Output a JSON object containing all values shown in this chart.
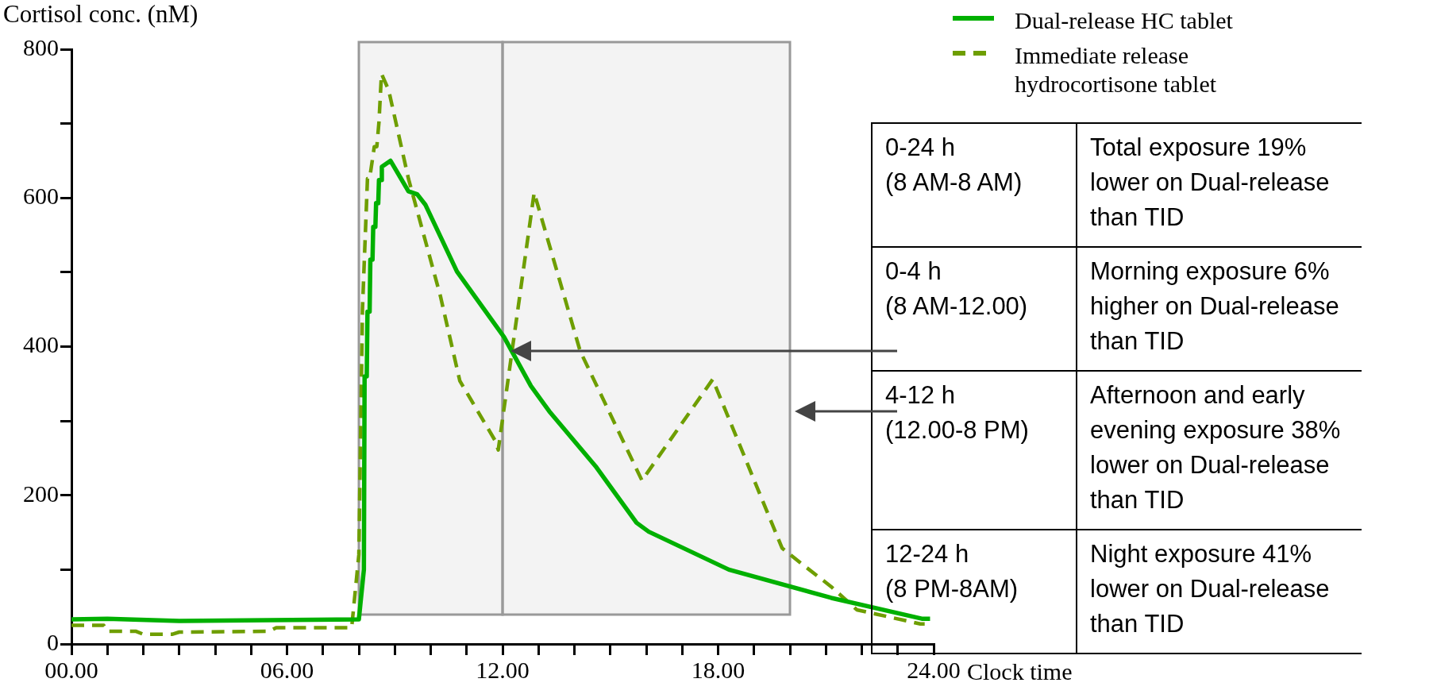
{
  "chart_data": {
    "type": "line",
    "ylabel": "Cortisol conc. (nM)",
    "xlabel": "Clock time",
    "xlim": [
      0,
      24
    ],
    "xticks": [
      {
        "value": 0,
        "label": "00.00"
      },
      {
        "value": 1,
        "label": null
      },
      {
        "value": 2,
        "label": null
      },
      {
        "value": 3,
        "label": null
      },
      {
        "value": 4,
        "label": null
      },
      {
        "value": 5,
        "label": null
      },
      {
        "value": 6,
        "label": "06.00"
      },
      {
        "value": 7,
        "label": null
      },
      {
        "value": 8,
        "label": null
      },
      {
        "value": 9,
        "label": null
      },
      {
        "value": 10,
        "label": null
      },
      {
        "value": 11,
        "label": null
      },
      {
        "value": 12,
        "label": "12.00"
      },
      {
        "value": 13,
        "label": null
      },
      {
        "value": 14,
        "label": null
      },
      {
        "value": 15,
        "label": null
      },
      {
        "value": 16,
        "label": null
      },
      {
        "value": 17,
        "label": null
      },
      {
        "value": 18,
        "label": "18.00"
      },
      {
        "value": 19,
        "label": null
      },
      {
        "value": 20,
        "label": null
      },
      {
        "value": 21,
        "label": null
      },
      {
        "value": 22,
        "label": null
      },
      {
        "value": 23,
        "label": null
      },
      {
        "value": 24,
        "label": "24.00"
      }
    ],
    "ylim": [
      0,
      800
    ],
    "yticks": [
      0,
      {
        "value": 100,
        "label": null
      },
      200,
      {
        "value": 300,
        "label": null
      },
      400,
      {
        "value": 500,
        "label": null
      },
      600,
      {
        "value": 700,
        "label": null
      },
      800
    ],
    "grid": false,
    "legend": "top right",
    "marker": "none",
    "series": [
      {
        "name": "Dual-release HC tablet",
        "color": "#00b000",
        "line_style": "solid",
        "x": [
          0,
          1,
          3,
          8,
          8.14,
          8.16,
          8.22,
          8.24,
          8.3,
          8.32,
          8.38,
          8.4,
          8.46,
          8.48,
          8.54,
          8.56,
          8.62,
          8.64,
          8.88,
          9.38,
          9.62,
          9.85,
          10.73,
          12.04,
          12.79,
          13.3,
          14.59,
          15.73,
          16.07,
          18.3,
          21.15,
          23.67,
          23.9
        ],
        "values": [
          33,
          34,
          31,
          33,
          100,
          360,
          360,
          447,
          447,
          517,
          517,
          561,
          561,
          593,
          593,
          624,
          624,
          642,
          650,
          609,
          605,
          591,
          501,
          413,
          347,
          313,
          239,
          163,
          151,
          100,
          62,
          34,
          34
        ]
      },
      {
        "name": "Immediate release hydrocortisone tablet",
        "color": "#6e9e00",
        "line_style": "dashed",
        "x": [
          0,
          0.9,
          1,
          1.8,
          2,
          2.8,
          3,
          5.5,
          5.7,
          7.8,
          8.0,
          8.1,
          8.24,
          8.3,
          8.43,
          8.5,
          8.56,
          8.63,
          8.83,
          9.38,
          10.27,
          10.81,
          11.8,
          11.88,
          12.88,
          14.16,
          15.88,
          17.85,
          19.78,
          20.27,
          21.15,
          21.86,
          23.63,
          23.75
        ],
        "values": [
          25,
          25,
          17,
          17,
          13,
          13,
          16,
          17,
          22,
          22,
          120,
          450,
          626,
          626,
          669,
          669,
          702,
          767,
          745,
          626,
          468,
          354,
          273,
          261,
          607,
          394,
          220,
          356,
          129,
          110,
          77,
          46,
          27,
          27
        ]
      }
    ],
    "bands": [
      {
        "axis": "x",
        "from": 8,
        "to": 12,
        "color": "#999999"
      },
      {
        "axis": "x",
        "from": 12,
        "to": 20,
        "color": "#999999"
      }
    ],
    "annotations": [
      "0-24 h\n(8 AM-8 AM)",
      "Total exposure 19% lower on Dual-release than TID",
      "0-4 h\n(8 AM-12.00)",
      "Morning exposure 6% higher on Dual-release than TID",
      "4-12 h\n(12.00-8 PM)",
      "Afternoon and early evening exposure 38% lower on Dual-release than TID",
      "12-24 h\n(8 PM-8AM)",
      "Night exposure 41% lower on Dual-release than TID"
    ]
  }
}
